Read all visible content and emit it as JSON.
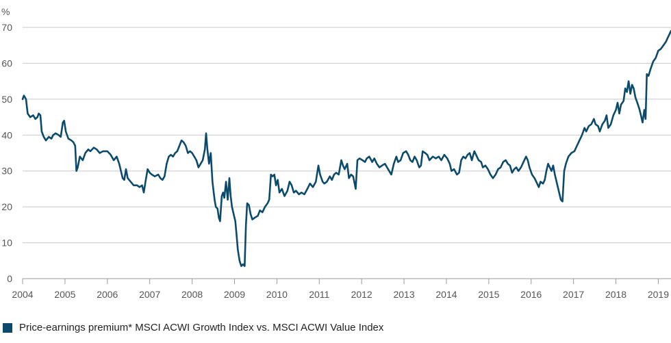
{
  "chart_data": {
    "type": "line",
    "ylabel": "%",
    "ylim": [
      0,
      70
    ],
    "yticks": [
      "0",
      "10",
      "20",
      "30",
      "40",
      "50",
      "60",
      "70"
    ],
    "xlim": [
      2004,
      2019.3
    ],
    "xticks": [
      "2004",
      "2005",
      "2006",
      "2007",
      "2008",
      "2009",
      "2010",
      "2011",
      "2012",
      "2013",
      "2014",
      "2015",
      "2016",
      "2017",
      "2018",
      "2019"
    ],
    "grid": "horizontal",
    "legend_position": "bottom-left",
    "colors": {
      "series": "#0b4a6b",
      "grid": "#c8c8c8",
      "axis": "#999999"
    },
    "series": [
      {
        "name": "Price-earnings premium* MSCI ACWI Growth Index vs. MSCI ACWI Value Index",
        "points": [
          [
            2004.0,
            50
          ],
          [
            2004.03,
            51
          ],
          [
            2004.08,
            50
          ],
          [
            2004.12,
            46
          ],
          [
            2004.18,
            45
          ],
          [
            2004.25,
            45.5
          ],
          [
            2004.3,
            44.5
          ],
          [
            2004.35,
            45
          ],
          [
            2004.38,
            46
          ],
          [
            2004.42,
            45.5
          ],
          [
            2004.45,
            41
          ],
          [
            2004.5,
            39.5
          ],
          [
            2004.55,
            38.5
          ],
          [
            2004.62,
            39.5
          ],
          [
            2004.68,
            39
          ],
          [
            2004.72,
            40
          ],
          [
            2004.78,
            40.5
          ],
          [
            2004.85,
            40
          ],
          [
            2004.9,
            39.5
          ],
          [
            2004.95,
            43.5
          ],
          [
            2004.98,
            44
          ],
          [
            2005.02,
            41
          ],
          [
            2005.08,
            39
          ],
          [
            2005.15,
            38.5
          ],
          [
            2005.2,
            38
          ],
          [
            2005.24,
            37
          ],
          [
            2005.27,
            30
          ],
          [
            2005.3,
            31
          ],
          [
            2005.35,
            34
          ],
          [
            2005.42,
            33
          ],
          [
            2005.48,
            35
          ],
          [
            2005.55,
            36
          ],
          [
            2005.6,
            35.5
          ],
          [
            2005.68,
            36.5
          ],
          [
            2005.75,
            36
          ],
          [
            2005.82,
            35
          ],
          [
            2005.9,
            35.5
          ],
          [
            2006.0,
            35.5
          ],
          [
            2006.08,
            34.5
          ],
          [
            2006.15,
            33
          ],
          [
            2006.22,
            34
          ],
          [
            2006.28,
            32
          ],
          [
            2006.32,
            30
          ],
          [
            2006.36,
            28
          ],
          [
            2006.4,
            27.5
          ],
          [
            2006.44,
            30.5
          ],
          [
            2006.48,
            28
          ],
          [
            2006.55,
            27
          ],
          [
            2006.62,
            26
          ],
          [
            2006.7,
            26
          ],
          [
            2006.76,
            25.5
          ],
          [
            2006.82,
            26
          ],
          [
            2006.86,
            24
          ],
          [
            2006.9,
            27
          ],
          [
            2006.95,
            30.5
          ],
          [
            2007.0,
            29.5
          ],
          [
            2007.05,
            29
          ],
          [
            2007.12,
            28.5
          ],
          [
            2007.2,
            29
          ],
          [
            2007.25,
            28
          ],
          [
            2007.3,
            27.5
          ],
          [
            2007.35,
            28.5
          ],
          [
            2007.4,
            32
          ],
          [
            2007.45,
            34
          ],
          [
            2007.5,
            34.5
          ],
          [
            2007.55,
            34
          ],
          [
            2007.6,
            35
          ],
          [
            2007.65,
            35.5
          ],
          [
            2007.7,
            37
          ],
          [
            2007.75,
            38.5
          ],
          [
            2007.8,
            38
          ],
          [
            2007.85,
            37
          ],
          [
            2007.9,
            35
          ],
          [
            2007.95,
            35.5
          ],
          [
            2008.0,
            35
          ],
          [
            2008.05,
            34
          ],
          [
            2008.1,
            33
          ],
          [
            2008.15,
            31
          ],
          [
            2008.2,
            32
          ],
          [
            2008.25,
            33
          ],
          [
            2008.3,
            36
          ],
          [
            2008.33,
            40.5
          ],
          [
            2008.36,
            36
          ],
          [
            2008.4,
            32
          ],
          [
            2008.44,
            35
          ],
          [
            2008.48,
            27
          ],
          [
            2008.5,
            25
          ],
          [
            2008.53,
            22
          ],
          [
            2008.56,
            20
          ],
          [
            2008.6,
            19.5
          ],
          [
            2008.63,
            17
          ],
          [
            2008.66,
            16
          ],
          [
            2008.7,
            23
          ],
          [
            2008.73,
            24
          ],
          [
            2008.76,
            22.5
          ],
          [
            2008.8,
            27
          ],
          [
            2008.84,
            22
          ],
          [
            2008.88,
            28
          ],
          [
            2008.91,
            23
          ],
          [
            2008.94,
            20
          ],
          [
            2008.98,
            18
          ],
          [
            2009.02,
            16
          ],
          [
            2009.05,
            12
          ],
          [
            2009.08,
            8
          ],
          [
            2009.12,
            5
          ],
          [
            2009.16,
            3.5
          ],
          [
            2009.2,
            4
          ],
          [
            2009.24,
            3.5
          ],
          [
            2009.27,
            15
          ],
          [
            2009.3,
            21
          ],
          [
            2009.34,
            20.5
          ],
          [
            2009.38,
            18
          ],
          [
            2009.42,
            16.5
          ],
          [
            2009.48,
            17
          ],
          [
            2009.55,
            17.5
          ],
          [
            2009.6,
            19
          ],
          [
            2009.66,
            18.5
          ],
          [
            2009.72,
            20
          ],
          [
            2009.78,
            21
          ],
          [
            2009.82,
            22
          ],
          [
            2009.86,
            29
          ],
          [
            2009.9,
            28.5
          ],
          [
            2009.94,
            29
          ],
          [
            2009.98,
            26
          ],
          [
            2010.02,
            27.5
          ],
          [
            2010.06,
            24
          ],
          [
            2010.12,
            25
          ],
          [
            2010.18,
            23
          ],
          [
            2010.25,
            24.5
          ],
          [
            2010.3,
            27
          ],
          [
            2010.35,
            26
          ],
          [
            2010.4,
            24
          ],
          [
            2010.45,
            24.5
          ],
          [
            2010.52,
            23.5
          ],
          [
            2010.58,
            24
          ],
          [
            2010.65,
            23.5
          ],
          [
            2010.72,
            25
          ],
          [
            2010.78,
            26.5
          ],
          [
            2010.85,
            25.5
          ],
          [
            2010.92,
            27
          ],
          [
            2010.98,
            31.5
          ],
          [
            2011.02,
            29
          ],
          [
            2011.08,
            27
          ],
          [
            2011.12,
            26.5
          ],
          [
            2011.18,
            27
          ],
          [
            2011.25,
            28.5
          ],
          [
            2011.3,
            27.5
          ],
          [
            2011.35,
            29
          ],
          [
            2011.4,
            29.5
          ],
          [
            2011.46,
            29
          ],
          [
            2011.52,
            33
          ],
          [
            2011.56,
            31.5
          ],
          [
            2011.6,
            30.5
          ],
          [
            2011.66,
            32
          ],
          [
            2011.7,
            28
          ],
          [
            2011.75,
            29
          ],
          [
            2011.8,
            28.5
          ],
          [
            2011.86,
            25
          ],
          [
            2011.9,
            33
          ],
          [
            2011.95,
            33.5
          ],
          [
            2012.02,
            33
          ],
          [
            2012.08,
            32.5
          ],
          [
            2012.12,
            33.5
          ],
          [
            2012.18,
            34
          ],
          [
            2012.25,
            32.5
          ],
          [
            2012.3,
            33.5
          ],
          [
            2012.36,
            32
          ],
          [
            2012.42,
            31
          ],
          [
            2012.48,
            31.5
          ],
          [
            2012.55,
            32
          ],
          [
            2012.6,
            31
          ],
          [
            2012.65,
            30
          ],
          [
            2012.7,
            29
          ],
          [
            2012.76,
            32
          ],
          [
            2012.82,
            34
          ],
          [
            2012.86,
            32.5
          ],
          [
            2012.92,
            33
          ],
          [
            2012.98,
            35
          ],
          [
            2013.05,
            35.5
          ],
          [
            2013.1,
            34.5
          ],
          [
            2013.15,
            33
          ],
          [
            2013.2,
            32.5
          ],
          [
            2013.25,
            34
          ],
          [
            2013.3,
            33
          ],
          [
            2013.36,
            31
          ],
          [
            2013.4,
            31.5
          ],
          [
            2013.44,
            35.5
          ],
          [
            2013.5,
            35
          ],
          [
            2013.55,
            34.5
          ],
          [
            2013.6,
            33
          ],
          [
            2013.68,
            34
          ],
          [
            2013.75,
            33.5
          ],
          [
            2013.82,
            34
          ],
          [
            2013.88,
            33
          ],
          [
            2013.95,
            34.5
          ],
          [
            2014.02,
            33.5
          ],
          [
            2014.08,
            32
          ],
          [
            2014.12,
            30
          ],
          [
            2014.18,
            30.5
          ],
          [
            2014.25,
            29
          ],
          [
            2014.3,
            29.5
          ],
          [
            2014.35,
            33
          ],
          [
            2014.4,
            34
          ],
          [
            2014.45,
            33.5
          ],
          [
            2014.5,
            34.5
          ],
          [
            2014.55,
            35
          ],
          [
            2014.6,
            33
          ],
          [
            2014.66,
            35.5
          ],
          [
            2014.72,
            34
          ],
          [
            2014.76,
            33
          ],
          [
            2014.82,
            32.5
          ],
          [
            2014.86,
            31
          ],
          [
            2014.92,
            31.5
          ],
          [
            2014.98,
            30.5
          ],
          [
            2015.04,
            29
          ],
          [
            2015.1,
            28
          ],
          [
            2015.16,
            29
          ],
          [
            2015.22,
            30.5
          ],
          [
            2015.28,
            31
          ],
          [
            2015.34,
            32.5
          ],
          [
            2015.4,
            33
          ],
          [
            2015.45,
            32
          ],
          [
            2015.5,
            31.5
          ],
          [
            2015.55,
            29.5
          ],
          [
            2015.6,
            30.5
          ],
          [
            2015.65,
            31
          ],
          [
            2015.7,
            30
          ],
          [
            2015.76,
            31
          ],
          [
            2015.82,
            32.5
          ],
          [
            2015.88,
            34
          ],
          [
            2015.92,
            33
          ],
          [
            2015.96,
            31
          ],
          [
            2016.02,
            29
          ],
          [
            2016.08,
            28
          ],
          [
            2016.12,
            27
          ],
          [
            2016.18,
            25.5
          ],
          [
            2016.22,
            27
          ],
          [
            2016.28,
            26.5
          ],
          [
            2016.32,
            27.5
          ],
          [
            2016.36,
            30
          ],
          [
            2016.4,
            32
          ],
          [
            2016.44,
            31
          ],
          [
            2016.48,
            30
          ],
          [
            2016.52,
            31.5
          ],
          [
            2016.56,
            29
          ],
          [
            2016.62,
            26
          ],
          [
            2016.66,
            24
          ],
          [
            2016.7,
            22
          ],
          [
            2016.74,
            21.5
          ],
          [
            2016.78,
            30
          ],
          [
            2016.82,
            32
          ],
          [
            2016.88,
            34
          ],
          [
            2016.95,
            35
          ],
          [
            2017.02,
            35.5
          ],
          [
            2017.08,
            37
          ],
          [
            2017.14,
            38.5
          ],
          [
            2017.2,
            40
          ],
          [
            2017.26,
            42
          ],
          [
            2017.3,
            41
          ],
          [
            2017.36,
            42.5
          ],
          [
            2017.42,
            43
          ],
          [
            2017.48,
            44.5
          ],
          [
            2017.52,
            43
          ],
          [
            2017.58,
            42.5
          ],
          [
            2017.62,
            41
          ],
          [
            2017.68,
            43
          ],
          [
            2017.74,
            44
          ],
          [
            2017.78,
            45.5
          ],
          [
            2017.82,
            42
          ],
          [
            2017.88,
            43
          ],
          [
            2017.94,
            45.5
          ],
          [
            2018.0,
            47
          ],
          [
            2018.04,
            49
          ],
          [
            2018.08,
            46
          ],
          [
            2018.12,
            48.5
          ],
          [
            2018.18,
            49.5
          ],
          [
            2018.22,
            53
          ],
          [
            2018.26,
            52
          ],
          [
            2018.3,
            55
          ],
          [
            2018.34,
            51.5
          ],
          [
            2018.38,
            54
          ],
          [
            2018.42,
            53
          ],
          [
            2018.46,
            50.5
          ],
          [
            2018.52,
            48.5
          ],
          [
            2018.56,
            47
          ],
          [
            2018.6,
            45
          ],
          [
            2018.63,
            43.5
          ],
          [
            2018.67,
            47
          ],
          [
            2018.7,
            44.5
          ],
          [
            2018.73,
            57
          ],
          [
            2018.77,
            56.5
          ],
          [
            2018.82,
            58.5
          ],
          [
            2018.88,
            60.5
          ],
          [
            2018.94,
            61.5
          ],
          [
            2019.0,
            63.5
          ],
          [
            2019.06,
            64
          ],
          [
            2019.12,
            65
          ],
          [
            2019.18,
            66
          ],
          [
            2019.22,
            67
          ],
          [
            2019.26,
            68
          ],
          [
            2019.3,
            69
          ]
        ]
      }
    ]
  }
}
